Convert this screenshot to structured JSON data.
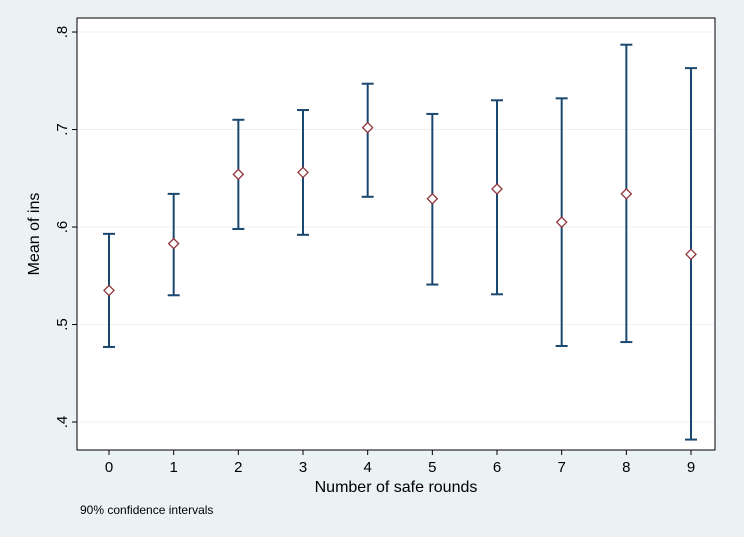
{
  "chart_data": {
    "type": "errorbar",
    "x_label": "Number of safe rounds",
    "y_label": "Mean of ins",
    "note": "90% confidence intervals",
    "x": [
      0,
      1,
      2,
      3,
      4,
      5,
      6,
      7,
      8,
      9
    ],
    "values": [
      0.535,
      0.583,
      0.654,
      0.656,
      0.702,
      0.629,
      0.639,
      0.605,
      0.634,
      0.572
    ],
    "upper": [
      0.593,
      0.634,
      0.71,
      0.72,
      0.747,
      0.716,
      0.73,
      0.732,
      0.787,
      0.763
    ],
    "lower": [
      0.477,
      0.53,
      0.598,
      0.592,
      0.631,
      0.541,
      0.531,
      0.478,
      0.482,
      0.382
    ],
    "marker_color": "#90353b",
    "bar_color": "#1a476f",
    "xlim": [
      -0.495,
      9.371
    ],
    "ylim": [
      0.3713,
      0.8144
    ],
    "xticks": [
      0,
      1,
      2,
      3,
      4,
      5,
      6,
      7,
      8,
      9
    ],
    "yticks": [
      {
        "value": 0.4,
        "label": ".4"
      },
      {
        "value": 0.5,
        "label": ".5"
      },
      {
        "value": 0.6,
        "label": ".6"
      },
      {
        "value": 0.7,
        "label": ".7"
      },
      {
        "value": 0.8,
        "label": ".8"
      }
    ],
    "grid": true
  }
}
